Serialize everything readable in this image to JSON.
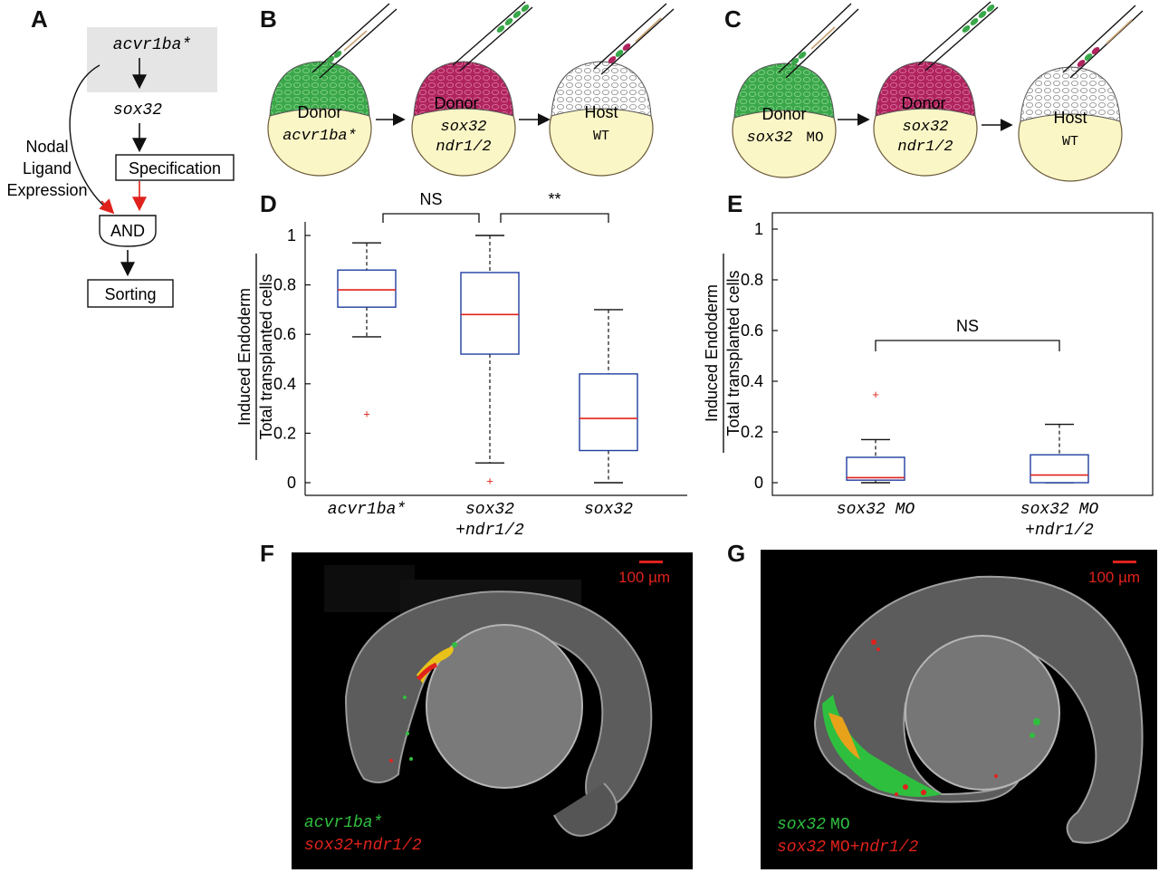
{
  "panels": {
    "A": "A",
    "B": "B",
    "C": "C",
    "D": "D",
    "E": "E",
    "F": "F",
    "G": "G"
  },
  "panel_a": {
    "gene_top": "acvr1ba*",
    "gene_mid": "sox32",
    "specification": "Specification",
    "nodal_line1": "Nodal",
    "nodal_line2": "Ligand",
    "nodal_line3": "Expression",
    "and_gate": "AND",
    "sorting": "Sorting"
  },
  "panel_b": {
    "embryo1_line1": "Donor",
    "embryo1_line2": "acvr1ba*",
    "embryo2_line1": "Donor",
    "embryo2_line2": "sox32",
    "embryo2_line3": "ndr1/2",
    "embryo3_line1": "Host",
    "embryo3_line2": "WT"
  },
  "panel_c": {
    "embryo1_line1": "Donor",
    "embryo1_line2a": "sox32",
    "embryo1_line2b": "MO",
    "embryo2_line1": "Donor",
    "embryo2_line2": "sox32",
    "embryo2_line3": "ndr1/2",
    "embryo3_line1": "Host",
    "embryo3_line2": "WT"
  },
  "colors": {
    "green_cells": "#3aa84a",
    "magenta_cells": "#b0245e",
    "yolk": "#fbf6c6",
    "box_blue": "#1f3fa0",
    "median_red": "#e0221c",
    "arrow_red": "#e0221c"
  },
  "chart_data": [
    {
      "type": "box",
      "panel": "D",
      "ylabel_numerator": "Induced Endoderm",
      "ylabel_denominator": "Total transplanted cells",
      "ylim": [
        0,
        1
      ],
      "yticks": [
        "0",
        "0.2",
        "0.4",
        "0.6",
        "0.8",
        "1"
      ],
      "categories": [
        {
          "line1": "acvr1ba*",
          "line2": ""
        },
        {
          "line1": "sox32",
          "line2": "+ndr1/2"
        },
        {
          "line1": "sox32",
          "line2": ""
        }
      ],
      "boxes": [
        {
          "whisker_low": 0.59,
          "q1": 0.71,
          "median": 0.78,
          "q3": 0.86,
          "whisker_high": 0.97,
          "outliers": [
            0.28
          ]
        },
        {
          "whisker_low": 0.08,
          "q1": 0.52,
          "median": 0.68,
          "q3": 0.85,
          "whisker_high": 1.0,
          "outliers": [
            0.01
          ]
        },
        {
          "whisker_low": 0.0,
          "q1": 0.13,
          "median": 0.26,
          "q3": 0.44,
          "whisker_high": 0.7,
          "outliers": []
        }
      ],
      "significance": [
        {
          "from": 0,
          "to": 1,
          "label": "NS"
        },
        {
          "from": 1,
          "to": 2,
          "label": "**"
        }
      ]
    },
    {
      "type": "box",
      "panel": "E",
      "ylabel_numerator": "Induced Endoderm",
      "ylabel_denominator": "Total transplanted cells",
      "ylim": [
        0,
        1
      ],
      "yticks": [
        "0",
        "0.2",
        "0.4",
        "0.6",
        "0.8",
        "1"
      ],
      "categories": [
        {
          "line1": "sox32 MO",
          "line2": ""
        },
        {
          "line1": "sox32 MO",
          "line2": "+ndr1/2"
        }
      ],
      "boxes": [
        {
          "whisker_low": 0.0,
          "q1": 0.01,
          "median": 0.02,
          "q3": 0.1,
          "whisker_high": 0.17,
          "outliers": [
            0.35
          ]
        },
        {
          "whisker_low": 0.0,
          "q1": 0.0,
          "median": 0.03,
          "q3": 0.11,
          "whisker_high": 0.23,
          "outliers": []
        }
      ],
      "significance": [
        {
          "from": 0,
          "to": 1,
          "label": "NS"
        }
      ]
    }
  ],
  "panel_f": {
    "scale_label": "100 µm",
    "legend_green": "acvr1ba*",
    "legend_red": "sox32+ndr1/2"
  },
  "panel_g": {
    "scale_label": "100 µm",
    "legend_green_italic": "sox32",
    "legend_green_plain": "MO",
    "legend_red_italic": "sox32",
    "legend_red_plain": "MO+",
    "legend_red_italic2": "ndr1/2"
  }
}
